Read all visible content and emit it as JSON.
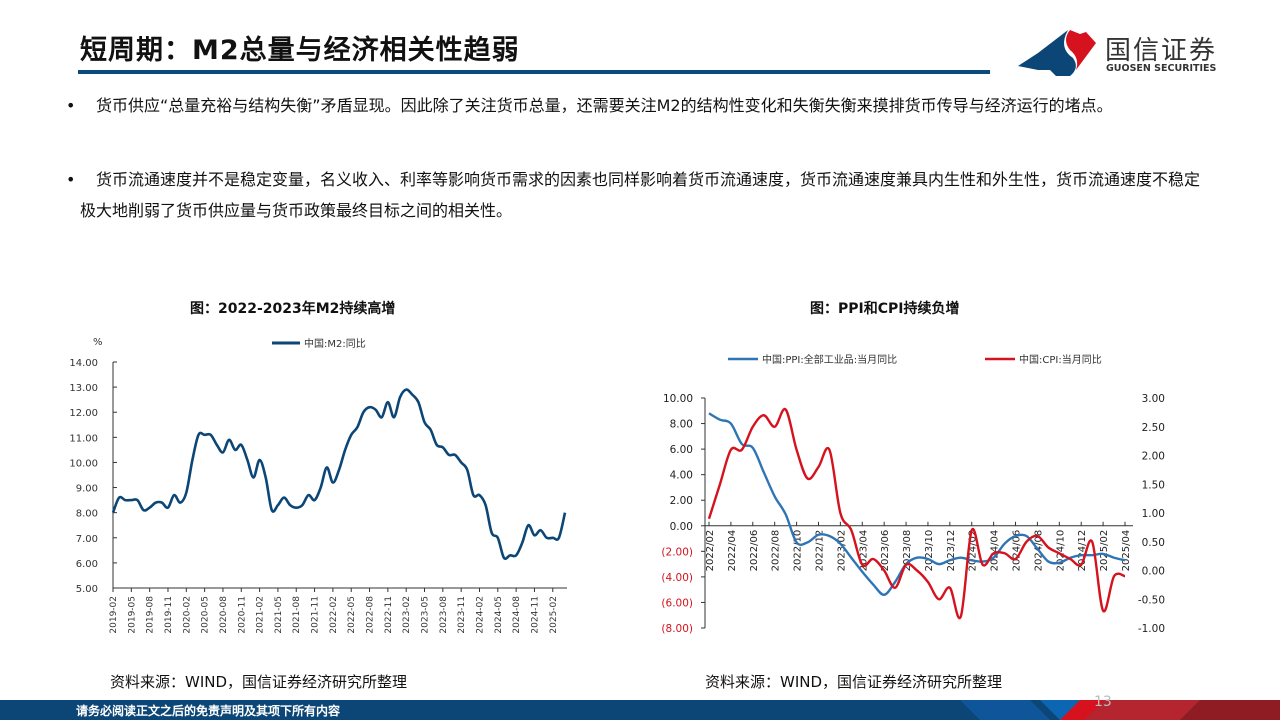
{
  "header": {
    "title": "短周期：M2总量与经济相关性趋弱",
    "logo_cn": "国信证券",
    "logo_en": "GUOSEN SECURITIES",
    "colors": {
      "rule": "#0b4a7d",
      "logo_blue": "#0b4676",
      "logo_red": "#d5121e"
    }
  },
  "bullets": [
    {
      "marker": "•",
      "text": "货币供应“总量充裕与结构失衡”矛盾显现。因此除了关注货币总量，还需要关注M2的结构性变化和失衡失衡来摸排货币传导与经济运行的堵点。"
    },
    {
      "marker": "•",
      "text": "货币流通速度并不是稳定变量，名义收入、利率等影响货币需求的因素也同样影响着货币流通速度，货币流通速度兼具内生性和外生性，货币流通速度不稳定极大地削弱了货币供应量与货币政策最终目标之间的相关性。"
    }
  ],
  "left_panel": {
    "caption": "图：2022-2023年M2持续高增",
    "source": "资料来源：WIND，国信证券经济研究所整理"
  },
  "right_panel": {
    "caption": "图：PPI和CPI持续负增",
    "source": "资料来源：WIND，国信证券经济研究所整理"
  },
  "chart_data": [
    {
      "type": "line",
      "unit_label": "%",
      "ylim": [
        5,
        14
      ],
      "yticks": [
        "5.00",
        "6.00",
        "7.00",
        "8.00",
        "9.00",
        "10.00",
        "11.00",
        "12.00",
        "13.00",
        "14.00"
      ],
      "xticks": [
        "2019-02",
        "2019-05",
        "2019-08",
        "2019-11",
        "2020-02",
        "2020-05",
        "2020-08",
        "2020-11",
        "2021-02",
        "2021-05",
        "2021-08",
        "2021-11",
        "2022-02",
        "2022-05",
        "2022-08",
        "2022-11",
        "2023-02",
        "2023-05",
        "2023-08",
        "2023-11",
        "2024-02",
        "2024-05",
        "2024-08",
        "2024-11",
        "2025-02"
      ],
      "x_start": "2019-02",
      "x_end": "2025-04",
      "grid": false,
      "legend": "top",
      "series": [
        {
          "name": "中国:M2:同比",
          "color": "#0b4676",
          "values": [
            8.0,
            8.6,
            8.5,
            8.5,
            8.5,
            8.1,
            8.2,
            8.4,
            8.4,
            8.2,
            8.7,
            8.4,
            8.8,
            10.1,
            11.1,
            11.1,
            11.1,
            10.7,
            10.4,
            10.9,
            10.5,
            10.7,
            10.1,
            9.4,
            10.1,
            9.4,
            8.1,
            8.3,
            8.6,
            8.3,
            8.2,
            8.3,
            8.7,
            8.5,
            9.0,
            9.8,
            9.2,
            9.7,
            10.5,
            11.1,
            11.4,
            12.0,
            12.2,
            12.1,
            11.8,
            12.4,
            11.8,
            12.6,
            12.9,
            12.7,
            12.4,
            11.6,
            11.3,
            10.7,
            10.6,
            10.3,
            10.3,
            10.0,
            9.7,
            8.7,
            8.7,
            8.3,
            7.2,
            7.0,
            6.2,
            6.3,
            6.3,
            6.8,
            7.5,
            7.1,
            7.3,
            7.0,
            7.0,
            7.0,
            8.0
          ]
        }
      ]
    },
    {
      "type": "line",
      "ylim": [
        -8,
        10
      ],
      "y2lim": [
        -1,
        3
      ],
      "yticks": [
        "(8.00)",
        "(6.00)",
        "(4.00)",
        "(2.00)",
        "0.00",
        "2.00",
        "4.00",
        "6.00",
        "8.00",
        "10.00"
      ],
      "y2ticks": [
        "-1.00",
        "-0.50",
        "0.00",
        "0.50",
        "1.00",
        "1.50",
        "2.00",
        "2.50",
        "3.00"
      ],
      "xticks": [
        "2022/02",
        "2022/04",
        "2022/06",
        "2022/08",
        "2022/10",
        "2022/12",
        "2023/02",
        "2023/04",
        "2023/06",
        "2023/08",
        "2023/10",
        "2023/12",
        "2024/02",
        "2024/04",
        "2024/06",
        "2024/08",
        "2024/10",
        "2024/12",
        "2025/02",
        "2025/04"
      ],
      "x_start": "2022/02",
      "x_end": "2025/04",
      "grid": false,
      "legend": "top",
      "negative_tick_color": "#d5121e",
      "series": [
        {
          "name": "中国:PPI:全部工业品:当月同比",
          "axis": "left",
          "color": "#2f75b5",
          "values": [
            8.8,
            8.3,
            8.0,
            6.4,
            6.1,
            4.2,
            2.3,
            0.9,
            -1.3,
            -1.3,
            -0.7,
            -0.8,
            -1.4,
            -2.5,
            -3.6,
            -4.6,
            -5.4,
            -4.4,
            -3.0,
            -2.5,
            -2.6,
            -3.0,
            -2.7,
            -2.5,
            -2.7,
            -2.8,
            -2.5,
            -1.4,
            -0.8,
            -0.8,
            -1.8,
            -2.8,
            -2.9,
            -2.5,
            -2.3,
            -2.3,
            -2.2,
            -2.5,
            -2.7
          ]
        },
        {
          "name": "中国:CPI:当月同比",
          "axis": "right",
          "color": "#d5121e",
          "values": [
            0.9,
            1.5,
            2.1,
            2.1,
            2.5,
            2.7,
            2.5,
            2.8,
            2.1,
            1.6,
            1.8,
            2.1,
            1.0,
            0.7,
            0.1,
            0.2,
            0.0,
            -0.3,
            0.1,
            0.0,
            -0.2,
            -0.5,
            -0.3,
            -0.8,
            0.7,
            0.1,
            0.3,
            0.3,
            0.2,
            0.5,
            0.6,
            0.4,
            0.3,
            0.2,
            0.1,
            0.5,
            -0.7,
            -0.1,
            -0.1
          ]
        }
      ]
    }
  ],
  "footer": {
    "disclaimer": "请务必阅读正文之后的免责声明及其项下所有内容",
    "page": "13"
  }
}
